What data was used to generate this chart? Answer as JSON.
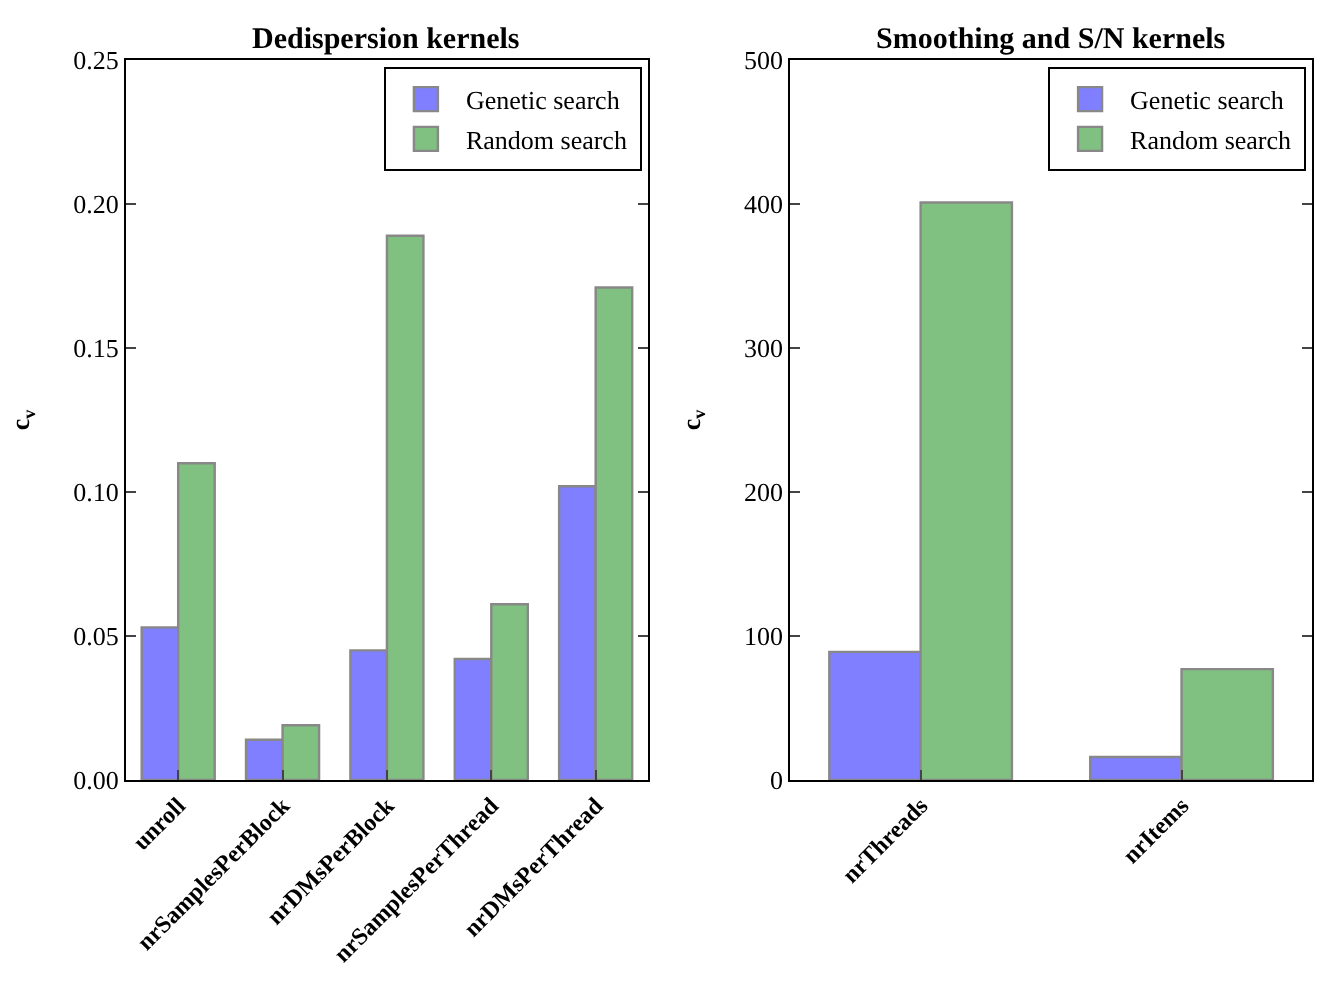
{
  "chart_data": [
    {
      "type": "bar",
      "title": "Dedispersion kernels",
      "ylabel": "c$_{v}$",
      "categories": [
        "unroll",
        "nrSamplesPerBlock",
        "nrDMsPerBlock",
        "nrSamplesPerThread",
        "nrDMsPerThread"
      ],
      "series": [
        {
          "name": "Genetic search",
          "color": "#7f7fff",
          "values": [
            0.053,
            0.014,
            0.045,
            0.042,
            0.102
          ]
        },
        {
          "name": "Random search",
          "color": "#80c080",
          "values": [
            0.11,
            0.019,
            0.189,
            0.061,
            0.171
          ]
        }
      ],
      "ylim": [
        0,
        0.25
      ],
      "yticks": [
        {
          "value": 0,
          "label": "0.00"
        },
        {
          "value": 0.05,
          "label": "0.05"
        },
        {
          "value": 0.1,
          "label": "0.10"
        },
        {
          "value": 0.15,
          "label": "0.15"
        },
        {
          "value": 0.2,
          "label": "0.20"
        },
        {
          "value": 0.25,
          "label": "0.25"
        }
      ],
      "legend": "top right"
    },
    {
      "type": "bar",
      "title": "Smoothing and S/N kernels",
      "ylabel": "c$_{v}$",
      "categories": [
        "nrThreads",
        "nrItems"
      ],
      "series": [
        {
          "name": "Genetic search",
          "color": "#7f7fff",
          "values": [
            89,
            16
          ]
        },
        {
          "name": "Random search",
          "color": "#80c080",
          "values": [
            401,
            77
          ]
        }
      ],
      "ylim": [
        0,
        500
      ],
      "yticks": [
        0,
        100,
        200,
        300,
        400,
        500
      ],
      "legend": "top right"
    }
  ]
}
